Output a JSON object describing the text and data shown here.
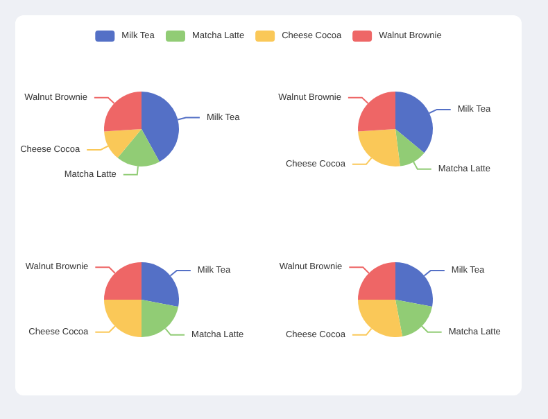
{
  "chart_data": [
    {
      "type": "pie",
      "categories": [
        "Milk Tea",
        "Matcha Latte",
        "Cheese Cocoa",
        "Walnut Brownie"
      ],
      "values": [
        42,
        19,
        13,
        26
      ],
      "colors": [
        "#5470c6",
        "#91cc75",
        "#fac858",
        "#ee6666"
      ],
      "legend": "top"
    },
    {
      "type": "pie",
      "categories": [
        "Milk Tea",
        "Matcha Latte",
        "Cheese Cocoa",
        "Walnut Brownie"
      ],
      "values": [
        36,
        12,
        26,
        26
      ],
      "colors": [
        "#5470c6",
        "#91cc75",
        "#fac858",
        "#ee6666"
      ]
    },
    {
      "type": "pie",
      "categories": [
        "Milk Tea",
        "Matcha Latte",
        "Cheese Cocoa",
        "Walnut Brownie"
      ],
      "values": [
        28,
        22,
        25,
        25
      ],
      "colors": [
        "#5470c6",
        "#91cc75",
        "#fac858",
        "#ee6666"
      ]
    },
    {
      "type": "pie",
      "categories": [
        "Milk Tea",
        "Matcha Latte",
        "Cheese Cocoa",
        "Walnut Brownie"
      ],
      "values": [
        28,
        19,
        28,
        25
      ],
      "colors": [
        "#5470c6",
        "#91cc75",
        "#fac858",
        "#ee6666"
      ]
    }
  ]
}
